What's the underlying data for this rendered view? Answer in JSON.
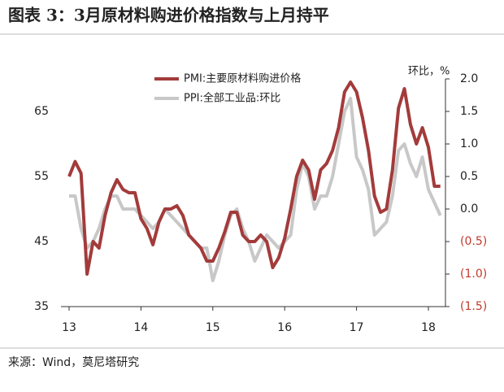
{
  "chart_data": {
    "type": "line",
    "title": "图表 3：3月原材料购进价格指数与上月持平",
    "y2_label": "环比，%",
    "source": "来源：Wind，莫尼塔研究",
    "categories": [
      "13",
      null,
      null,
      null,
      null,
      null,
      null,
      null,
      null,
      null,
      null,
      null,
      "14",
      null,
      null,
      null,
      null,
      null,
      null,
      null,
      null,
      null,
      null,
      null,
      "15",
      null,
      null,
      null,
      null,
      null,
      null,
      null,
      null,
      null,
      null,
      null,
      "16",
      null,
      null,
      null,
      null,
      null,
      null,
      null,
      null,
      null,
      null,
      null,
      "17",
      null,
      null,
      null,
      null,
      null,
      null,
      null,
      null,
      null,
      null,
      null,
      "18",
      null,
      null
    ],
    "series": [
      {
        "name": "PMI:主要原材料购进价格",
        "color": "#a33b3b",
        "values": [
          55,
          57.3,
          55.5,
          40,
          45,
          44,
          49,
          52.5,
          54.5,
          53,
          52.5,
          52.5,
          48.5,
          47,
          44.5,
          48,
          50,
          50,
          50.5,
          49,
          46,
          45,
          44,
          42,
          42,
          44,
          46.5,
          49.5,
          49.5,
          46,
          45,
          45,
          46,
          45,
          41,
          42.5,
          45.5,
          50,
          55,
          57.5,
          56,
          51.5,
          56,
          57,
          59,
          62.5,
          68,
          69.5,
          68,
          64,
          59,
          52,
          49.5,
          50,
          56,
          65.5,
          68.5,
          63,
          60,
          62.5,
          59.5,
          53.5,
          53.5
        ]
      },
      {
        "name": "PPI:全部工业品:环比",
        "color": "#c8c8c8",
        "axis": "y2",
        "values": [
          0.2,
          0.2,
          -0.3,
          -0.6,
          -0.5,
          -0.3,
          0.0,
          0.2,
          0.2,
          0.0,
          0.0,
          0.0,
          -0.1,
          -0.2,
          -0.3,
          -0.2,
          0.0,
          -0.1,
          -0.2,
          -0.3,
          -0.4,
          -0.5,
          -0.6,
          -0.6,
          -1.1,
          -0.8,
          -0.4,
          -0.1,
          0.0,
          -0.3,
          -0.5,
          -0.8,
          -0.6,
          -0.4,
          -0.5,
          -0.6,
          -0.5,
          -0.4,
          0.3,
          0.7,
          0.5,
          0.0,
          0.2,
          0.2,
          0.5,
          1.0,
          1.5,
          1.7,
          0.8,
          0.6,
          0.3,
          -0.4,
          -0.3,
          -0.2,
          0.2,
          0.9,
          1.0,
          0.7,
          0.5,
          0.8,
          0.3,
          0.1,
          -0.1
        ]
      }
    ],
    "ylim": [
      35,
      70
    ],
    "yticks": [
      35,
      45,
      55,
      65
    ],
    "y2lim": [
      -1.5,
      2.0
    ],
    "y2ticks": [
      {
        "value": 2.0,
        "label": "2.0"
      },
      {
        "value": 1.5,
        "label": "1.5"
      },
      {
        "value": 1.0,
        "label": "1.0"
      },
      {
        "value": 0.5,
        "label": "0.5"
      },
      {
        "value": 0.0,
        "label": "0.0"
      },
      {
        "value": -0.5,
        "label": "(0.5)"
      },
      {
        "value": -1.0,
        "label": "(1.0)"
      },
      {
        "value": -1.5,
        "label": "(1.5)"
      }
    ],
    "negative_tick_color": "#c0392b",
    "legend": "top"
  }
}
